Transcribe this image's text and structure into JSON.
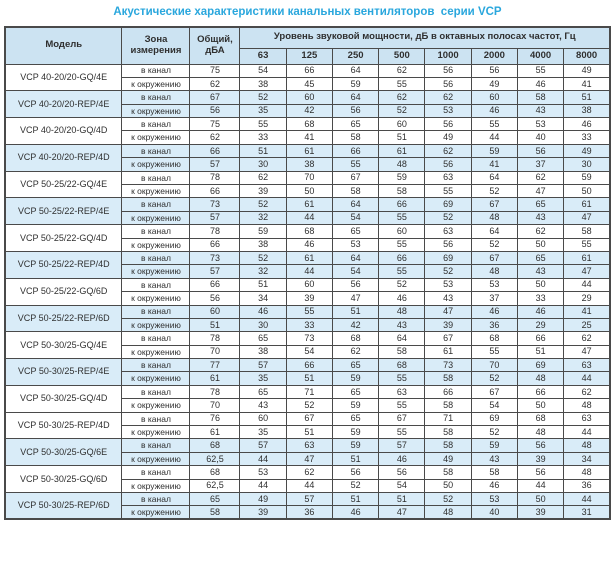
{
  "title": "Акустические характеристики канальных вентиляторов  серии VCP",
  "colors": {
    "title_accent": "#2aa7dd",
    "header_bg": "#cce3f2",
    "row_alt_bg": "#d9ecf8",
    "border": "#4a4a4a",
    "text": "#2f2f2f"
  },
  "table": {
    "headers": {
      "model": "Модель",
      "zone": "Зона измерения",
      "total": "Общий, дБА",
      "spl": "Уровень звуковой мощности, дБ в октавных полосах частот, Гц",
      "frequencies": [
        "63",
        "125",
        "250",
        "500",
        "1000",
        "2000",
        "4000",
        "8000"
      ]
    },
    "zone_labels": [
      "в канал",
      "к окружению"
    ],
    "rows": [
      {
        "model": "VCP 40-20/20-GQ/4E",
        "shaded": false,
        "in_duct": {
          "total": "75",
          "values": [
            "54",
            "66",
            "64",
            "62",
            "56",
            "56",
            "55",
            "49"
          ]
        },
        "to_env": {
          "total": "62",
          "values": [
            "38",
            "45",
            "59",
            "55",
            "56",
            "49",
            "46",
            "41"
          ]
        }
      },
      {
        "model": "VCP 40-20/20-REP/4E",
        "shaded": true,
        "in_duct": {
          "total": "67",
          "values": [
            "52",
            "60",
            "64",
            "62",
            "62",
            "60",
            "58",
            "51"
          ]
        },
        "to_env": {
          "total": "56",
          "values": [
            "35",
            "42",
            "56",
            "52",
            "53",
            "46",
            "43",
            "38"
          ]
        }
      },
      {
        "model": "VCP 40-20/20-GQ/4D",
        "shaded": false,
        "in_duct": {
          "total": "75",
          "values": [
            "55",
            "68",
            "65",
            "60",
            "56",
            "55",
            "53",
            "46"
          ]
        },
        "to_env": {
          "total": "62",
          "values": [
            "33",
            "41",
            "58",
            "51",
            "49",
            "44",
            "40",
            "33"
          ]
        }
      },
      {
        "model": "VCP 40-20/20-REP/4D",
        "shaded": true,
        "in_duct": {
          "total": "66",
          "values": [
            "51",
            "61",
            "66",
            "61",
            "62",
            "59",
            "56",
            "49"
          ]
        },
        "to_env": {
          "total": "57",
          "values": [
            "30",
            "38",
            "55",
            "48",
            "56",
            "41",
            "37",
            "30"
          ]
        }
      },
      {
        "model": "VCP 50-25/22-GQ/4E",
        "shaded": false,
        "in_duct": {
          "total": "78",
          "values": [
            "62",
            "70",
            "67",
            "59",
            "63",
            "64",
            "62",
            "59"
          ]
        },
        "to_env": {
          "total": "66",
          "values": [
            "39",
            "50",
            "58",
            "58",
            "55",
            "52",
            "47",
            "50"
          ]
        }
      },
      {
        "model": "VCP 50-25/22-REP/4E",
        "shaded": true,
        "in_duct": {
          "total": "73",
          "values": [
            "52",
            "61",
            "64",
            "66",
            "69",
            "67",
            "65",
            "61"
          ]
        },
        "to_env": {
          "total": "57",
          "values": [
            "32",
            "44",
            "54",
            "55",
            "52",
            "48",
            "43",
            "47"
          ]
        }
      },
      {
        "model": "VCP 50-25/22-GQ/4D",
        "shaded": false,
        "in_duct": {
          "total": "78",
          "values": [
            "59",
            "68",
            "65",
            "60",
            "63",
            "64",
            "62",
            "58"
          ]
        },
        "to_env": {
          "total": "66",
          "values": [
            "38",
            "46",
            "53",
            "55",
            "56",
            "52",
            "50",
            "55"
          ]
        }
      },
      {
        "model": "VCP 50-25/22-REP/4D",
        "shaded": true,
        "in_duct": {
          "total": "73",
          "values": [
            "52",
            "61",
            "64",
            "66",
            "69",
            "67",
            "65",
            "61"
          ]
        },
        "to_env": {
          "total": "57",
          "values": [
            "32",
            "44",
            "54",
            "55",
            "52",
            "48",
            "43",
            "47"
          ]
        }
      },
      {
        "model": "VCP 50-25/22-GQ/6D",
        "shaded": false,
        "in_duct": {
          "total": "66",
          "values": [
            "51",
            "60",
            "56",
            "52",
            "53",
            "53",
            "50",
            "44"
          ]
        },
        "to_env": {
          "total": "56",
          "values": [
            "34",
            "39",
            "47",
            "46",
            "43",
            "37",
            "33",
            "29"
          ]
        }
      },
      {
        "model": "VCP 50-25/22-REP/6D",
        "shaded": true,
        "in_duct": {
          "total": "60",
          "values": [
            "46",
            "55",
            "51",
            "48",
            "47",
            "46",
            "46",
            "41"
          ]
        },
        "to_env": {
          "total": "51",
          "values": [
            "30",
            "33",
            "42",
            "43",
            "39",
            "36",
            "29",
            "25"
          ]
        }
      },
      {
        "model": "VCP 50-30/25-GQ/4E",
        "shaded": false,
        "in_duct": {
          "total": "78",
          "values": [
            "65",
            "73",
            "68",
            "64",
            "67",
            "68",
            "66",
            "62"
          ]
        },
        "to_env": {
          "total": "70",
          "values": [
            "38",
            "54",
            "62",
            "58",
            "61",
            "55",
            "51",
            "47"
          ]
        }
      },
      {
        "model": "VCP 50-30/25-REP/4E",
        "shaded": true,
        "in_duct": {
          "total": "77",
          "values": [
            "57",
            "66",
            "65",
            "68",
            "73",
            "70",
            "69",
            "63"
          ]
        },
        "to_env": {
          "total": "61",
          "values": [
            "35",
            "51",
            "59",
            "55",
            "58",
            "52",
            "48",
            "44"
          ]
        }
      },
      {
        "model": "VCP 50-30/25-GQ/4D",
        "shaded": false,
        "in_duct": {
          "total": "78",
          "values": [
            "65",
            "71",
            "65",
            "63",
            "66",
            "67",
            "66",
            "62"
          ]
        },
        "to_env": {
          "total": "70",
          "values": [
            "43",
            "52",
            "59",
            "55",
            "58",
            "54",
            "50",
            "48"
          ]
        }
      },
      {
        "model": "VCP 50-30/25-REP/4D",
        "shaded": false,
        "in_duct": {
          "total": "76",
          "values": [
            "60",
            "67",
            "65",
            "67",
            "71",
            "69",
            "68",
            "63"
          ]
        },
        "to_env": {
          "total": "61",
          "values": [
            "35",
            "51",
            "59",
            "55",
            "58",
            "52",
            "48",
            "44"
          ]
        }
      },
      {
        "model": "VCP 50-30/25-GQ/6E",
        "shaded": true,
        "in_duct": {
          "total": "68",
          "values": [
            "57",
            "63",
            "59",
            "57",
            "58",
            "59",
            "56",
            "48"
          ]
        },
        "to_env": {
          "total": "62,5",
          "values": [
            "44",
            "47",
            "51",
            "46",
            "49",
            "43",
            "39",
            "34"
          ]
        }
      },
      {
        "model": "VCP 50-30/25-GQ/6D",
        "shaded": false,
        "in_duct": {
          "total": "68",
          "values": [
            "53",
            "62",
            "56",
            "56",
            "58",
            "58",
            "56",
            "48"
          ]
        },
        "to_env": {
          "total": "62,5",
          "values": [
            "44",
            "44",
            "52",
            "54",
            "50",
            "46",
            "44",
            "36"
          ]
        }
      },
      {
        "model": "VCP 50-30/25-REP/6D",
        "shaded": true,
        "in_duct": {
          "total": "65",
          "values": [
            "49",
            "57",
            "51",
            "51",
            "52",
            "53",
            "50",
            "44"
          ]
        },
        "to_env": {
          "total": "58",
          "values": [
            "39",
            "36",
            "46",
            "47",
            "48",
            "40",
            "39",
            "31"
          ]
        }
      }
    ]
  }
}
